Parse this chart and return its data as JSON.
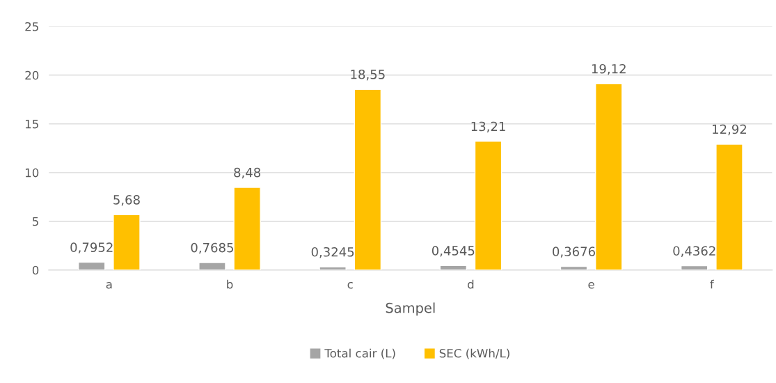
{
  "chart_data": {
    "type": "bar",
    "xlabel": "Sampel",
    "categories": [
      "a",
      "b",
      "c",
      "d",
      "e",
      "f"
    ],
    "series": [
      {
        "name": "Total cair (L)",
        "color": "#a5a5a5",
        "values": [
          0.7952,
          0.7685,
          0.3245,
          0.4545,
          0.3676,
          0.4362
        ],
        "value_labels": [
          "0,7952",
          "0,7685",
          "0,3245",
          "0,4545",
          "0,3676",
          "0,4362"
        ]
      },
      {
        "name": "SEC (kWh/L)",
        "color": "#ffc000",
        "values": [
          5.68,
          8.48,
          18.55,
          13.21,
          19.12,
          12.92
        ],
        "value_labels": [
          "5,68",
          "8,48",
          "18,55",
          "13,21",
          "19,12",
          "12,92"
        ]
      }
    ],
    "ylim": [
      0,
      25
    ],
    "yticks": [
      0,
      5,
      10,
      15,
      20,
      25
    ],
    "grid": "y",
    "legend": "bottom"
  }
}
